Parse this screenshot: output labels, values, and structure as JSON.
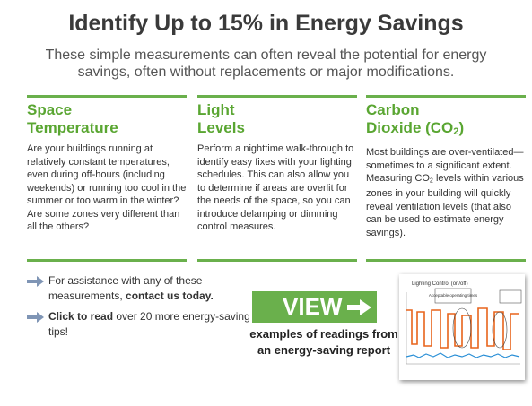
{
  "header": {
    "title": "Identify Up to 15% in Energy Savings",
    "subtitle": "These simple measurements can often reveal the potential for energy savings, often without replacements or major modifications."
  },
  "columns": [
    {
      "heading": [
        "Space",
        "Temperature"
      ],
      "body": [
        "Are your buildings running at relatively constant temperatures, even during off-hours (including weekends) or running too cool in the summer or too warm in the winter? Are some zones very different than all the others?"
      ]
    },
    {
      "heading": [
        "Light",
        "Levels"
      ],
      "body": [
        "Perform a nighttime walk-through to identify easy fixes with your lighting schedules. This can also allow you to determine if areas are overlit for the needs of the space, so you can introduce delamping or dimming control measures."
      ]
    },
    {
      "heading": [
        "Carbon",
        "Dioxide (CO",
        "2",
        ")"
      ],
      "body": [
        "Most buildings are over-ventilated—sometimes to a significant extent. Measuring CO",
        "2",
        " levels within various zones in your building will quickly reveal ventilation levels (that also can be used to estimate energy savings)."
      ]
    }
  ],
  "links": [
    {
      "text": "For assistance with any of these measurements, ",
      "link": "contact us today."
    },
    {
      "link": "Click to read",
      "text": " over 20 more energy-saving tips!"
    }
  ],
  "view": {
    "button": "VIEW",
    "caption": "examples of readings from an energy-saving report"
  },
  "thumbnail": {
    "title": "Lighting Control (on/off)",
    "note": "Acceptable operating times"
  }
}
